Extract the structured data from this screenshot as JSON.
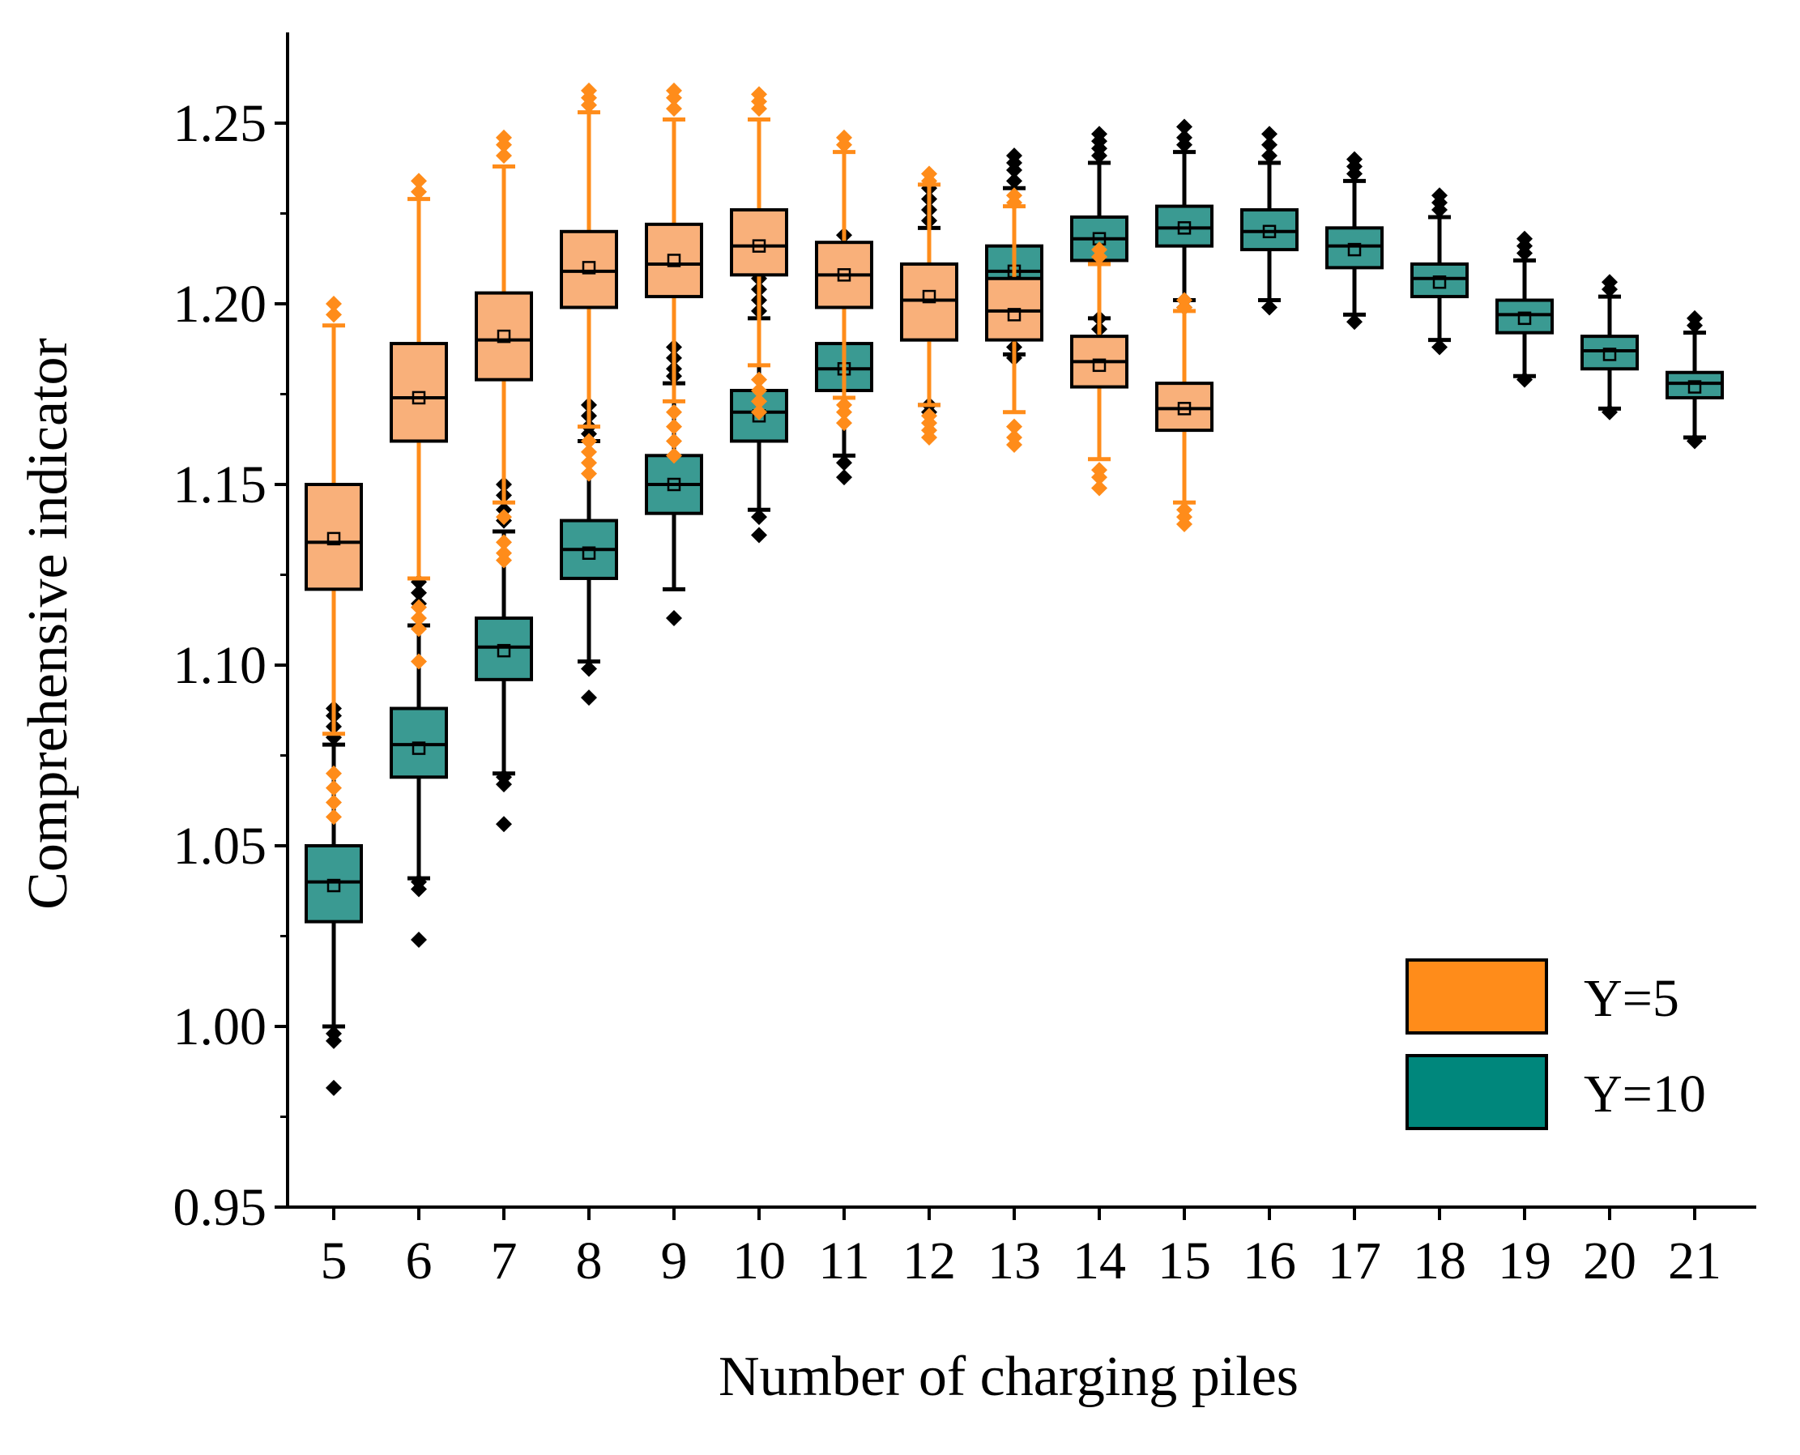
{
  "chart_data": {
    "type": "box",
    "title": "",
    "xlabel": "Number of charging piles",
    "ylabel": "Comprehensive indicator",
    "ylim": [
      0.95,
      1.275
    ],
    "yticks": [
      "0.95",
      "1.00",
      "1.05",
      "1.10",
      "1.15",
      "1.20",
      "1.25"
    ],
    "categories": [
      "5",
      "6",
      "7",
      "8",
      "9",
      "10",
      "11",
      "12",
      "13",
      "14",
      "15",
      "16",
      "17",
      "18",
      "19",
      "20",
      "21"
    ],
    "legend": {
      "position": "bottom-right"
    },
    "series": [
      {
        "name": "Y=5",
        "color": "#ff8c1a",
        "box_color": "#f9b07a",
        "boxes": [
          {
            "x": "5",
            "whisker_low": 1.081,
            "q1": 1.121,
            "median": 1.134,
            "q3": 1.15,
            "whisker_high": 1.194,
            "mean": 1.135,
            "outliers": [
              1.058,
              1.062,
              1.066,
              1.07,
              1.197,
              1.2
            ]
          },
          {
            "x": "6",
            "whisker_low": 1.124,
            "q1": 1.162,
            "median": 1.174,
            "q3": 1.189,
            "whisker_high": 1.229,
            "mean": 1.174,
            "outliers": [
              1.101,
              1.11,
              1.113,
              1.116,
              1.231,
              1.234
            ]
          },
          {
            "x": "7",
            "whisker_low": 1.145,
            "q1": 1.179,
            "median": 1.19,
            "q3": 1.203,
            "whisker_high": 1.238,
            "mean": 1.191,
            "outliers": [
              1.129,
              1.131,
              1.134,
              1.141,
              1.241,
              1.244,
              1.246
            ]
          },
          {
            "x": "8",
            "whisker_low": 1.166,
            "q1": 1.199,
            "median": 1.209,
            "q3": 1.22,
            "whisker_high": 1.253,
            "mean": 1.21,
            "outliers": [
              1.153,
              1.156,
              1.159,
              1.162,
              1.255,
              1.257,
              1.259
            ]
          },
          {
            "x": "9",
            "whisker_low": 1.173,
            "q1": 1.202,
            "median": 1.211,
            "q3": 1.222,
            "whisker_high": 1.251,
            "mean": 1.212,
            "outliers": [
              1.158,
              1.162,
              1.166,
              1.17,
              1.254,
              1.257,
              1.259
            ]
          },
          {
            "x": "10",
            "whisker_low": 1.183,
            "q1": 1.208,
            "median": 1.216,
            "q3": 1.226,
            "whisker_high": 1.251,
            "mean": 1.216,
            "outliers": [
              1.17,
              1.173,
              1.176,
              1.179,
              1.254,
              1.256,
              1.258
            ]
          },
          {
            "x": "11",
            "whisker_low": 1.174,
            "q1": 1.199,
            "median": 1.208,
            "q3": 1.217,
            "whisker_high": 1.242,
            "mean": 1.208,
            "outliers": [
              1.167,
              1.17,
              1.172,
              1.244,
              1.246
            ]
          },
          {
            "x": "12",
            "whisker_low": 1.172,
            "q1": 1.19,
            "median": 1.201,
            "q3": 1.211,
            "whisker_high": 1.233,
            "mean": 1.202,
            "outliers": [
              1.163,
              1.165,
              1.167,
              1.169,
              1.234,
              1.236
            ]
          },
          {
            "x": "13",
            "whisker_low": 1.17,
            "q1": 1.19,
            "median": 1.198,
            "q3": 1.207,
            "whisker_high": 1.227,
            "mean": 1.197,
            "outliers": [
              1.161,
              1.163,
              1.166,
              1.228,
              1.23
            ]
          },
          {
            "x": "14",
            "whisker_low": 1.157,
            "q1": 1.177,
            "median": 1.184,
            "q3": 1.191,
            "whisker_high": 1.211,
            "mean": 1.183,
            "outliers": [
              1.149,
              1.152,
              1.154,
              1.213,
              1.215
            ]
          },
          {
            "x": "15",
            "whisker_low": 1.145,
            "q1": 1.165,
            "median": 1.171,
            "q3": 1.178,
            "whisker_high": 1.198,
            "mean": 1.171,
            "outliers": [
              1.139,
              1.141,
              1.143,
              1.199,
              1.201
            ]
          }
        ]
      },
      {
        "name": "Y=10",
        "color": "#000000",
        "box_color": "#3a9a92",
        "boxes": [
          {
            "x": "5",
            "whisker_low": 1.0,
            "q1": 1.029,
            "median": 1.04,
            "q3": 1.05,
            "whisker_high": 1.078,
            "mean": 1.039,
            "outliers": [
              0.983,
              0.996,
              0.998,
              1.08,
              1.083,
              1.086,
              1.088
            ]
          },
          {
            "x": "6",
            "whisker_low": 1.041,
            "q1": 1.069,
            "median": 1.078,
            "q3": 1.088,
            "whisker_high": 1.111,
            "mean": 1.077,
            "outliers": [
              1.024,
              1.038,
              1.04,
              1.117,
              1.12,
              1.123
            ]
          },
          {
            "x": "7",
            "whisker_low": 1.07,
            "q1": 1.096,
            "median": 1.105,
            "q3": 1.113,
            "whisker_high": 1.137,
            "mean": 1.104,
            "outliers": [
              1.056,
              1.067,
              1.069,
              1.14,
              1.143,
              1.147,
              1.15
            ]
          },
          {
            "x": "8",
            "whisker_low": 1.101,
            "q1": 1.124,
            "median": 1.132,
            "q3": 1.14,
            "whisker_high": 1.162,
            "mean": 1.131,
            "outliers": [
              1.091,
              1.099,
              1.164,
              1.166,
              1.169,
              1.172
            ]
          },
          {
            "x": "9",
            "whisker_low": 1.121,
            "q1": 1.142,
            "median": 1.15,
            "q3": 1.158,
            "whisker_high": 1.178,
            "mean": 1.15,
            "outliers": [
              1.113,
              1.18,
              1.182,
              1.185,
              1.188
            ]
          },
          {
            "x": "10",
            "whisker_low": 1.143,
            "q1": 1.162,
            "median": 1.17,
            "q3": 1.176,
            "whisker_high": 1.196,
            "mean": 1.169,
            "outliers": [
              1.136,
              1.141,
              1.198,
              1.201,
              1.204,
              1.207
            ]
          },
          {
            "x": "11",
            "whisker_low": 1.158,
            "q1": 1.176,
            "median": 1.182,
            "q3": 1.189,
            "whisker_high": 1.207,
            "mean": 1.182,
            "outliers": [
              1.152,
              1.156,
              1.21,
              1.213,
              1.216,
              1.219
            ]
          },
          {
            "x": "12",
            "whisker_low": 1.172,
            "q1": 1.19,
            "median": 1.196,
            "q3": 1.203,
            "whisker_high": 1.221,
            "mean": 1.196,
            "outliers": [
              1.17,
              1.172,
              1.223,
              1.226,
              1.229,
              1.232
            ]
          },
          {
            "x": "13",
            "whisker_low": 1.186,
            "q1": 1.203,
            "median": 1.209,
            "q3": 1.216,
            "whisker_high": 1.232,
            "mean": 1.209,
            "outliers": [
              1.185,
              1.188,
              1.234,
              1.237,
              1.239,
              1.241
            ]
          },
          {
            "x": "14",
            "whisker_low": 1.196,
            "q1": 1.212,
            "median": 1.218,
            "q3": 1.224,
            "whisker_high": 1.239,
            "mean": 1.218,
            "outliers": [
              1.193,
              1.196,
              1.241,
              1.243,
              1.245,
              1.247
            ]
          },
          {
            "x": "15",
            "whisker_low": 1.201,
            "q1": 1.216,
            "median": 1.221,
            "q3": 1.227,
            "whisker_high": 1.242,
            "mean": 1.221,
            "outliers": [
              1.199,
              1.201,
              1.244,
              1.246,
              1.249
            ]
          },
          {
            "x": "16",
            "whisker_low": 1.201,
            "q1": 1.215,
            "median": 1.22,
            "q3": 1.226,
            "whisker_high": 1.239,
            "mean": 1.22,
            "outliers": [
              1.199,
              1.241,
              1.244,
              1.247
            ]
          },
          {
            "x": "17",
            "whisker_low": 1.197,
            "q1": 1.21,
            "median": 1.216,
            "q3": 1.221,
            "whisker_high": 1.234,
            "mean": 1.215,
            "outliers": [
              1.195,
              1.236,
              1.238,
              1.24
            ]
          },
          {
            "x": "18",
            "whisker_low": 1.19,
            "q1": 1.202,
            "median": 1.207,
            "q3": 1.211,
            "whisker_high": 1.224,
            "mean": 1.206,
            "outliers": [
              1.188,
              1.226,
              1.228,
              1.23
            ]
          },
          {
            "x": "19",
            "whisker_low": 1.18,
            "q1": 1.192,
            "median": 1.197,
            "q3": 1.201,
            "whisker_high": 1.212,
            "mean": 1.196,
            "outliers": [
              1.179,
              1.214,
              1.216,
              1.218
            ]
          },
          {
            "x": "20",
            "whisker_low": 1.171,
            "q1": 1.182,
            "median": 1.187,
            "q3": 1.191,
            "whisker_high": 1.202,
            "mean": 1.186,
            "outliers": [
              1.17,
              1.204,
              1.206
            ]
          },
          {
            "x": "21",
            "whisker_low": 1.163,
            "q1": 1.174,
            "median": 1.178,
            "q3": 1.181,
            "whisker_high": 1.192,
            "mean": 1.177,
            "outliers": [
              1.162,
              1.194,
              1.196
            ]
          }
        ]
      }
    ]
  }
}
